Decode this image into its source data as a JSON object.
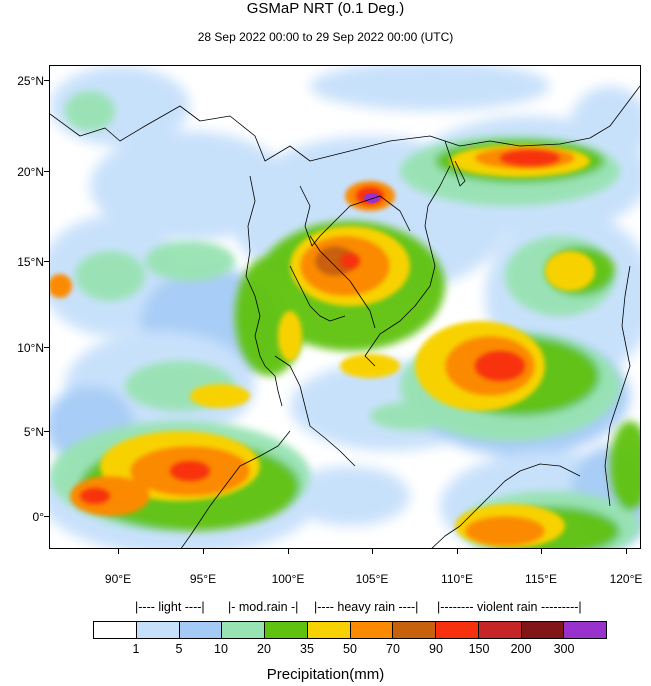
{
  "title": "GSMaP NRT (0.1 Deg.)",
  "subtitle": "28 Sep 2022 00:00 to 29 Sep 2022 00:00 (UTC)",
  "map": {
    "lat_labels": [
      "25°N",
      "20°N",
      "15°N",
      "10°N",
      "5°N",
      "0°"
    ],
    "lon_labels": [
      "90°E",
      "95°E",
      "100°E",
      "105°E",
      "110°E",
      "115°E",
      "120°E"
    ],
    "lat_range": [
      -1.8,
      25.8
    ],
    "lon_range": [
      86,
      121
    ],
    "lat_ticks": [
      25,
      20,
      15,
      10,
      5,
      0
    ],
    "lon_ticks": [
      90,
      95,
      100,
      105,
      110,
      115,
      120
    ]
  },
  "legend": {
    "categories": {
      "light": "|---- light ----|",
      "mod_rain": "|- mod.rain -|",
      "heavy_rain": "|---- heavy rain ----|",
      "violent_rain": "|-------- violent rain ---------|"
    },
    "colors": [
      "#ffffff",
      "#c6e0fb",
      "#a4cbf6",
      "#98e3b2",
      "#5fc210",
      "#f8d200",
      "#fb8a00",
      "#c8610b",
      "#f7300e",
      "#c52526",
      "#821616",
      "#9932cc"
    ],
    "labels": [
      "1",
      "5",
      "10",
      "20",
      "35",
      "50",
      "70",
      "90",
      "150",
      "200",
      "300"
    ],
    "units": "Precipitation(mm)"
  }
}
